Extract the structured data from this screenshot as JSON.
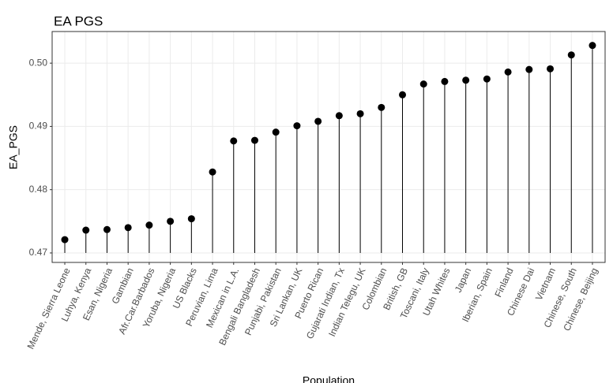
{
  "chart_data": {
    "type": "lollipop",
    "title": "EA PGS",
    "x_label": "Population",
    "y_label": "EA_PGS",
    "categories": [
      "Mende, Sierra Leone",
      "Luhya, Kenya",
      "Esan, Nigeria",
      "Gambian",
      "Afr.Car.Barbados",
      "Yoruba, Nigeria",
      "US Blacks",
      "Peruvian, Lima",
      "Mexican in L.A.",
      "Bengali Bangladesh",
      "Punjabi, Pakistan",
      "Sri Lankan, UK",
      "Puerto Rican",
      "Gujarati Indian, Tx",
      "Indian Telegu, UK",
      "Colombian",
      "British, GB",
      "Toscani, Italy",
      "Utah Whites",
      "Japan",
      "Iberian, Spain",
      "Finland",
      "Chinese Dai",
      "Vietnam",
      "Chinese, South",
      "Chinese, Beijing"
    ],
    "values": [
      0.4721,
      0.4736,
      0.4737,
      0.474,
      0.4744,
      0.475,
      0.4754,
      0.4828,
      0.4877,
      0.4878,
      0.4891,
      0.4901,
      0.4908,
      0.4917,
      0.492,
      0.493,
      0.495,
      0.4967,
      0.4971,
      0.4973,
      0.4975,
      0.4986,
      0.499,
      0.4991,
      0.5013,
      0.5028
    ],
    "color": "#000000",
    "ylim": [
      0.4685,
      0.505
    ],
    "yticks": [
      0.47,
      0.48,
      0.49,
      {
        "value": 0.5,
        "label": "0.50"
      }
    ],
    "grid": true
  }
}
